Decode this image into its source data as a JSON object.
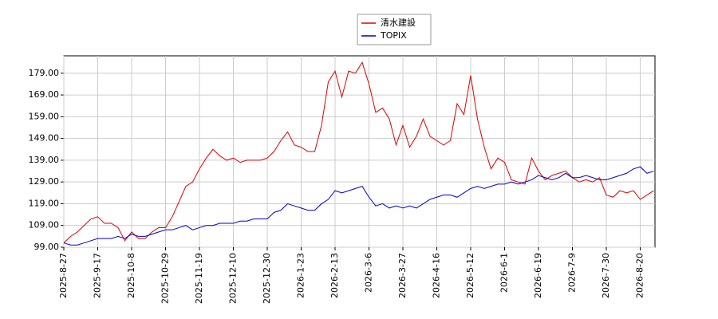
{
  "chart_data": {
    "type": "line",
    "categories": [
      "2025-8-27",
      null,
      null,
      null,
      null,
      "2025-9-17",
      null,
      null,
      null,
      null,
      "2025-10-8",
      null,
      null,
      null,
      null,
      "2025-10-29",
      null,
      null,
      null,
      null,
      "2025-11-19",
      null,
      null,
      null,
      null,
      "2025-12-10",
      null,
      null,
      null,
      null,
      "2025-12-30",
      null,
      null,
      null,
      null,
      "2026-1-23",
      null,
      null,
      null,
      null,
      "2026-2-13",
      null,
      null,
      null,
      null,
      "2026-3-6",
      null,
      null,
      null,
      null,
      "2026-3-27",
      null,
      null,
      null,
      null,
      "2026-4-16",
      null,
      null,
      null,
      null,
      "2026-5-12",
      null,
      null,
      null,
      null,
      "2026-6-1",
      null,
      null,
      null,
      null,
      "2026-6-19",
      null,
      null,
      null,
      null,
      "2026-7-9",
      null,
      null,
      null,
      null,
      "2026-7-30",
      null,
      null,
      null,
      null,
      "2026-8-20",
      null,
      null
    ],
    "series": [
      {
        "name": "清水建設",
        "color": "#dd0000",
        "values": [
          101,
          104,
          106,
          109,
          112,
          113,
          110,
          110,
          108,
          102,
          106,
          103,
          103,
          106,
          108,
          108,
          113,
          120,
          127,
          129,
          135,
          140,
          144,
          141,
          139,
          140,
          138,
          139,
          139,
          139,
          140,
          143,
          148,
          152,
          146,
          145,
          143,
          143,
          155,
          175,
          180,
          168,
          180,
          179,
          184,
          174,
          161,
          163,
          158,
          146,
          155,
          145,
          150,
          158,
          150,
          148,
          146,
          148,
          165,
          160,
          178,
          158,
          145,
          135,
          140,
          138,
          130,
          129,
          128,
          140,
          134,
          130,
          132,
          133,
          134,
          131,
          129,
          130,
          129,
          131,
          123,
          122,
          125,
          124,
          125,
          121,
          123,
          125
        ]
      },
      {
        "name": "TOPIX",
        "color": "#0000cc",
        "values": [
          101,
          100,
          100,
          101,
          102,
          103,
          103,
          103,
          104,
          103,
          105,
          104,
          104,
          105,
          106,
          107,
          107,
          108,
          109,
          107,
          108,
          109,
          109,
          110,
          110,
          110,
          111,
          111,
          112,
          112,
          112,
          115,
          116,
          119,
          118,
          117,
          116,
          116,
          119,
          121,
          125,
          124,
          125,
          126,
          127,
          122,
          118,
          119,
          117,
          118,
          117,
          118,
          117,
          119,
          121,
          122,
          123,
          123,
          122,
          124,
          126,
          127,
          126,
          127,
          128,
          128,
          129,
          128,
          129,
          130,
          132,
          131,
          130,
          131,
          133,
          131,
          131,
          132,
          131,
          130,
          130,
          131,
          132,
          133,
          135,
          136,
          133,
          134
        ]
      }
    ],
    "ylim": [
      99,
      187
    ],
    "yticks": [
      {
        "value": 99,
        "label": "99.00"
      },
      {
        "value": 109,
        "label": "109.00"
      },
      {
        "value": 119,
        "label": "119.00"
      },
      {
        "value": 129,
        "label": "129.00"
      },
      {
        "value": 139,
        "label": "139.00"
      },
      {
        "value": 149,
        "label": "149.00"
      },
      {
        "value": 159,
        "label": "159.00"
      },
      {
        "value": 169,
        "label": "169.00"
      },
      {
        "value": 179,
        "label": "179.00"
      }
    ],
    "grid": true
  }
}
